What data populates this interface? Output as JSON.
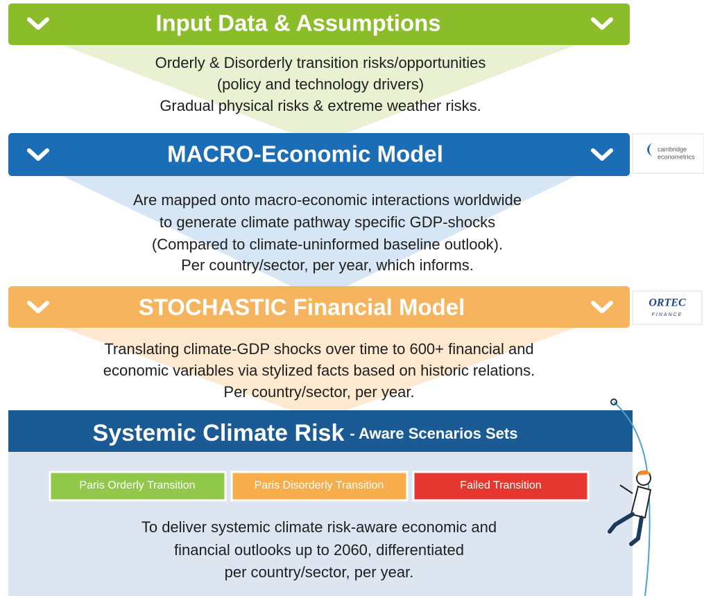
{
  "sections": [
    {
      "title": "Input Data & Assumptions",
      "lines": [
        "Orderly & Disorderly transition risks/opportunities",
        "(policy and technology drivers)",
        "Gradual physical risks & extreme weather risks."
      ]
    },
    {
      "title": "MACRO-Economic Model",
      "logo": [
        "cambridge",
        "econometrics"
      ],
      "lines": [
        "Are mapped onto macro-economic interactions worldwide",
        "to generate climate pathway specific GDP-shocks",
        "(Compared to climate-uninformed baseline outlook).",
        "Per country/sector, per year, which informs."
      ]
    },
    {
      "title": "STOCHASTIC Financial Model",
      "logo": [
        "ORTEC",
        "FINANCE"
      ],
      "lines": [
        "Translating climate-GDP shocks over time to 600+ financial and",
        "economic variables via stylized facts based on historic relations.",
        "Per country/sector, per year."
      ]
    }
  ],
  "final": {
    "title": "Systemic Climate Risk",
    "subtitle": "- Aware Scenarios Sets",
    "scenarios": [
      "Paris Orderly Transition",
      "Paris Disorderly Transition",
      "Failed Transition"
    ],
    "lines": [
      "To deliver systemic climate risk-aware economic and",
      "financial outlooks up to 2060, differentiated",
      "per country/sector, per year."
    ]
  }
}
